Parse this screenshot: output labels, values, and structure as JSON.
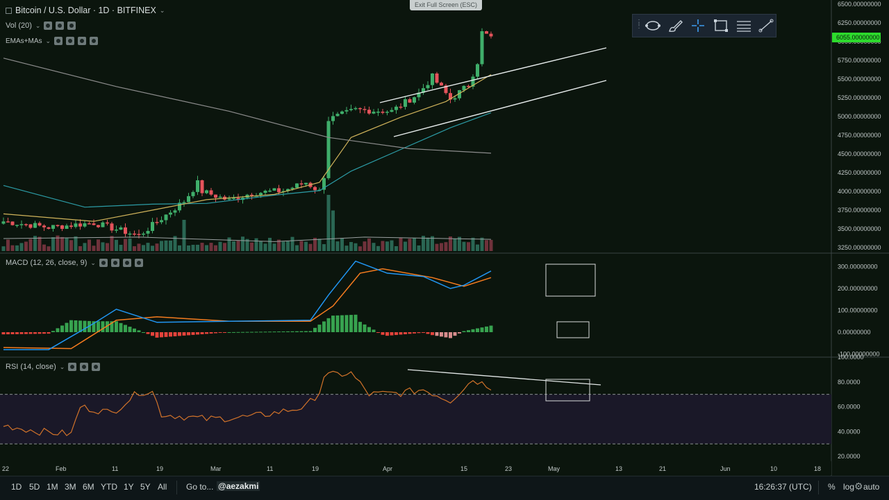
{
  "header": {
    "symbol_title": "Bitcoin / U.S. Dollar · 1D · BITFINEX",
    "fullscreen_label": "Exit Full Screen (ESC)"
  },
  "legends": {
    "volume": "Vol (20)",
    "emas": "EMAs+MAs",
    "macd": "MACD (12, 26, close, 9)",
    "rsi": "RSI (14, close)"
  },
  "price_badge": "6055.00000000",
  "bottom_bar": {
    "ranges": [
      "1D",
      "5D",
      "1M",
      "3M",
      "6M",
      "YTD",
      "1Y",
      "5Y",
      "All"
    ],
    "goto": "Go to...",
    "watermark": "@aezakmi",
    "clock": "16:26:37 (UTC)",
    "scale_options": [
      "%",
      "log",
      "auto"
    ]
  },
  "toolbar": {
    "icons": [
      "grip-icon",
      "lasso-icon",
      "brush-icon",
      "crosshair-icon",
      "rectangle-icon",
      "lines-icon",
      "trendline-icon"
    ]
  },
  "colors": {
    "background": "#0b150d",
    "up": "#3fae6a",
    "down": "#e4535b",
    "ema_fast": "#d1b45b",
    "ema_mid": "#2c9ca6",
    "ma_slow": "#8c8c8c",
    "macd_line": "#2196f3",
    "signal_line": "#f57c1f",
    "rsi_line": "#d2732a",
    "price_badge": "#2ddc2d"
  },
  "chart_data": {
    "type": "candlestick",
    "price_axis": {
      "min": 3250,
      "max": 6500,
      "ticks": [
        "6500.00000000",
        "6250.00000000",
        "6000.00000000",
        "5750.00000000",
        "5500.00000000",
        "5250.00000000",
        "5000.00000000",
        "4750.00000000",
        "4500.00000000",
        "4250.00000000",
        "4000.00000000",
        "3750.00000000",
        "3500.00000000",
        "3250.00000000"
      ]
    },
    "x_axis_labels": [
      "22",
      "Feb",
      "11",
      "19",
      "Mar",
      "11",
      "19",
      "Apr",
      "15",
      "23",
      "May",
      "13",
      "21",
      "Jun",
      "10",
      "18"
    ],
    "price_sample": [
      [
        0,
        3600
      ],
      [
        10,
        3520
      ],
      [
        20,
        3580
      ],
      [
        30,
        3410
      ],
      [
        35,
        3640
      ],
      [
        40,
        3870
      ],
      [
        43,
        4110
      ],
      [
        44,
        4000
      ],
      [
        50,
        3880
      ],
      [
        55,
        3980
      ],
      [
        62,
        4010
      ],
      [
        67,
        4120
      ],
      [
        70,
        4000
      ],
      [
        71,
        4210
      ],
      [
        72,
        4960
      ],
      [
        78,
        5090
      ],
      [
        86,
        5070
      ],
      [
        92,
        5310
      ],
      [
        95,
        5530
      ],
      [
        99,
        5230
      ],
      [
        103,
        5420
      ],
      [
        105,
        5730
      ],
      [
        106,
        6120
      ],
      [
        108,
        6055
      ]
    ],
    "volume_note": "bars in lower part of price pane",
    "macd": {
      "axis_ticks": [
        "300.00000000",
        "200.00000000",
        "100.00000000",
        "0.00000000",
        "-100.00000000"
      ],
      "macd_sample": [
        [
          0,
          -80
        ],
        [
          10,
          -80
        ],
        [
          20,
          40
        ],
        [
          25,
          105
        ],
        [
          34,
          45
        ],
        [
          50,
          50
        ],
        [
          68,
          55
        ],
        [
          72,
          170
        ],
        [
          78,
          325
        ],
        [
          85,
          270
        ],
        [
          93,
          255
        ],
        [
          99,
          200
        ],
        [
          102,
          215
        ],
        [
          108,
          280
        ]
      ],
      "signal_sample": [
        [
          0,
          -70
        ],
        [
          15,
          -75
        ],
        [
          25,
          55
        ],
        [
          34,
          70
        ],
        [
          50,
          50
        ],
        [
          68,
          50
        ],
        [
          73,
          120
        ],
        [
          79,
          270
        ],
        [
          84,
          290
        ],
        [
          95,
          250
        ],
        [
          102,
          210
        ],
        [
          108,
          250
        ]
      ]
    },
    "rsi": {
      "axis_ticks": [
        "100.0000",
        "80.0000",
        "60.0000",
        "40.0000",
        "20.0000"
      ],
      "upper_band": 70,
      "lower_band": 30,
      "rsi_sample": [
        [
          0,
          45
        ],
        [
          8,
          40
        ],
        [
          15,
          38
        ],
        [
          17,
          60
        ],
        [
          24,
          55
        ],
        [
          30,
          72
        ],
        [
          33,
          72
        ],
        [
          35,
          54
        ],
        [
          45,
          50
        ],
        [
          55,
          52
        ],
        [
          60,
          55
        ],
        [
          67,
          60
        ],
        [
          70,
          72
        ],
        [
          71,
          85
        ],
        [
          77,
          87
        ],
        [
          81,
          70
        ],
        [
          88,
          71
        ],
        [
          93,
          74
        ],
        [
          99,
          65
        ],
        [
          104,
          82
        ],
        [
          108,
          76
        ]
      ]
    }
  }
}
